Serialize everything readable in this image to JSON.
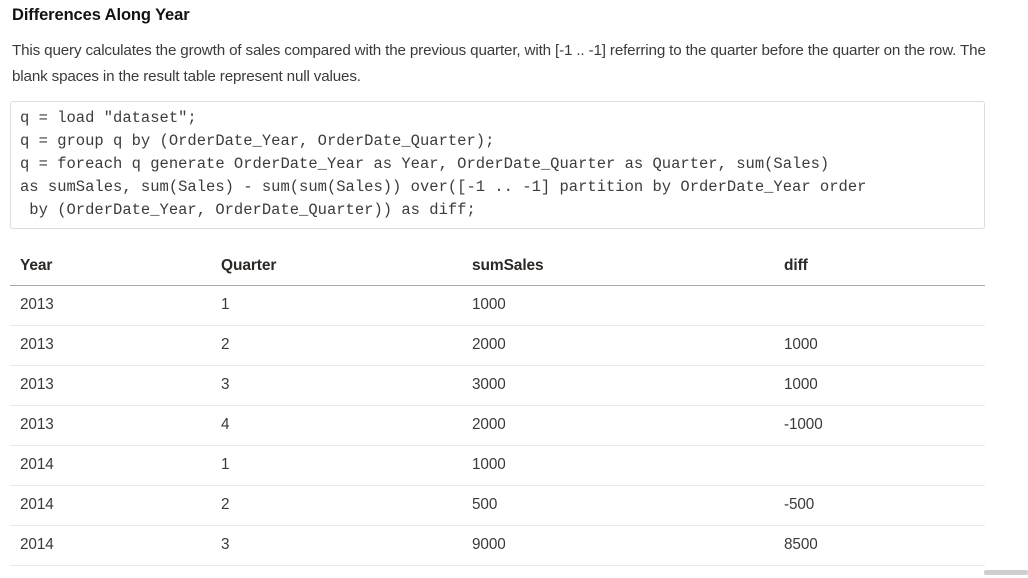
{
  "page": {
    "title": "Differences Along Year",
    "description": "This query calculates the growth of sales compared with the previous quarter, with [-1 .. -1] referring to the quarter before the quarter on the row. The blank spaces in the result table represent null values."
  },
  "code": {
    "language": "saql",
    "lines": [
      "q = load \"dataset\";",
      "q = group q by (OrderDate_Year, OrderDate_Quarter);",
      "q = foreach q generate OrderDate_Year as Year, OrderDate_Quarter as Quarter, sum(Sales)",
      "as sumSales, sum(Sales) - sum(sum(Sales)) over([-1 .. -1] partition by OrderDate_Year order",
      " by (OrderDate_Year, OrderDate_Quarter)) as diff;"
    ]
  },
  "chart_data": {
    "type": "table",
    "columns": [
      "Year",
      "Quarter",
      "sumSales",
      "diff"
    ],
    "rows": [
      [
        "2013",
        "1",
        "1000",
        ""
      ],
      [
        "2013",
        "2",
        "2000",
        "1000"
      ],
      [
        "2013",
        "3",
        "3000",
        "1000"
      ],
      [
        "2013",
        "4",
        "2000",
        "-1000"
      ],
      [
        "2014",
        "1",
        "1000",
        ""
      ],
      [
        "2014",
        "2",
        "500",
        "-500"
      ],
      [
        "2014",
        "3",
        "9000",
        "8500"
      ]
    ],
    "notes": "blank diff cells represent null values"
  },
  "colors": {
    "code_border": "#d8dde6",
    "header_rule": "#a9a9a9",
    "row_rule": "#e9e9e9",
    "body_text": "#3a3a38",
    "title_text": "#121212"
  }
}
